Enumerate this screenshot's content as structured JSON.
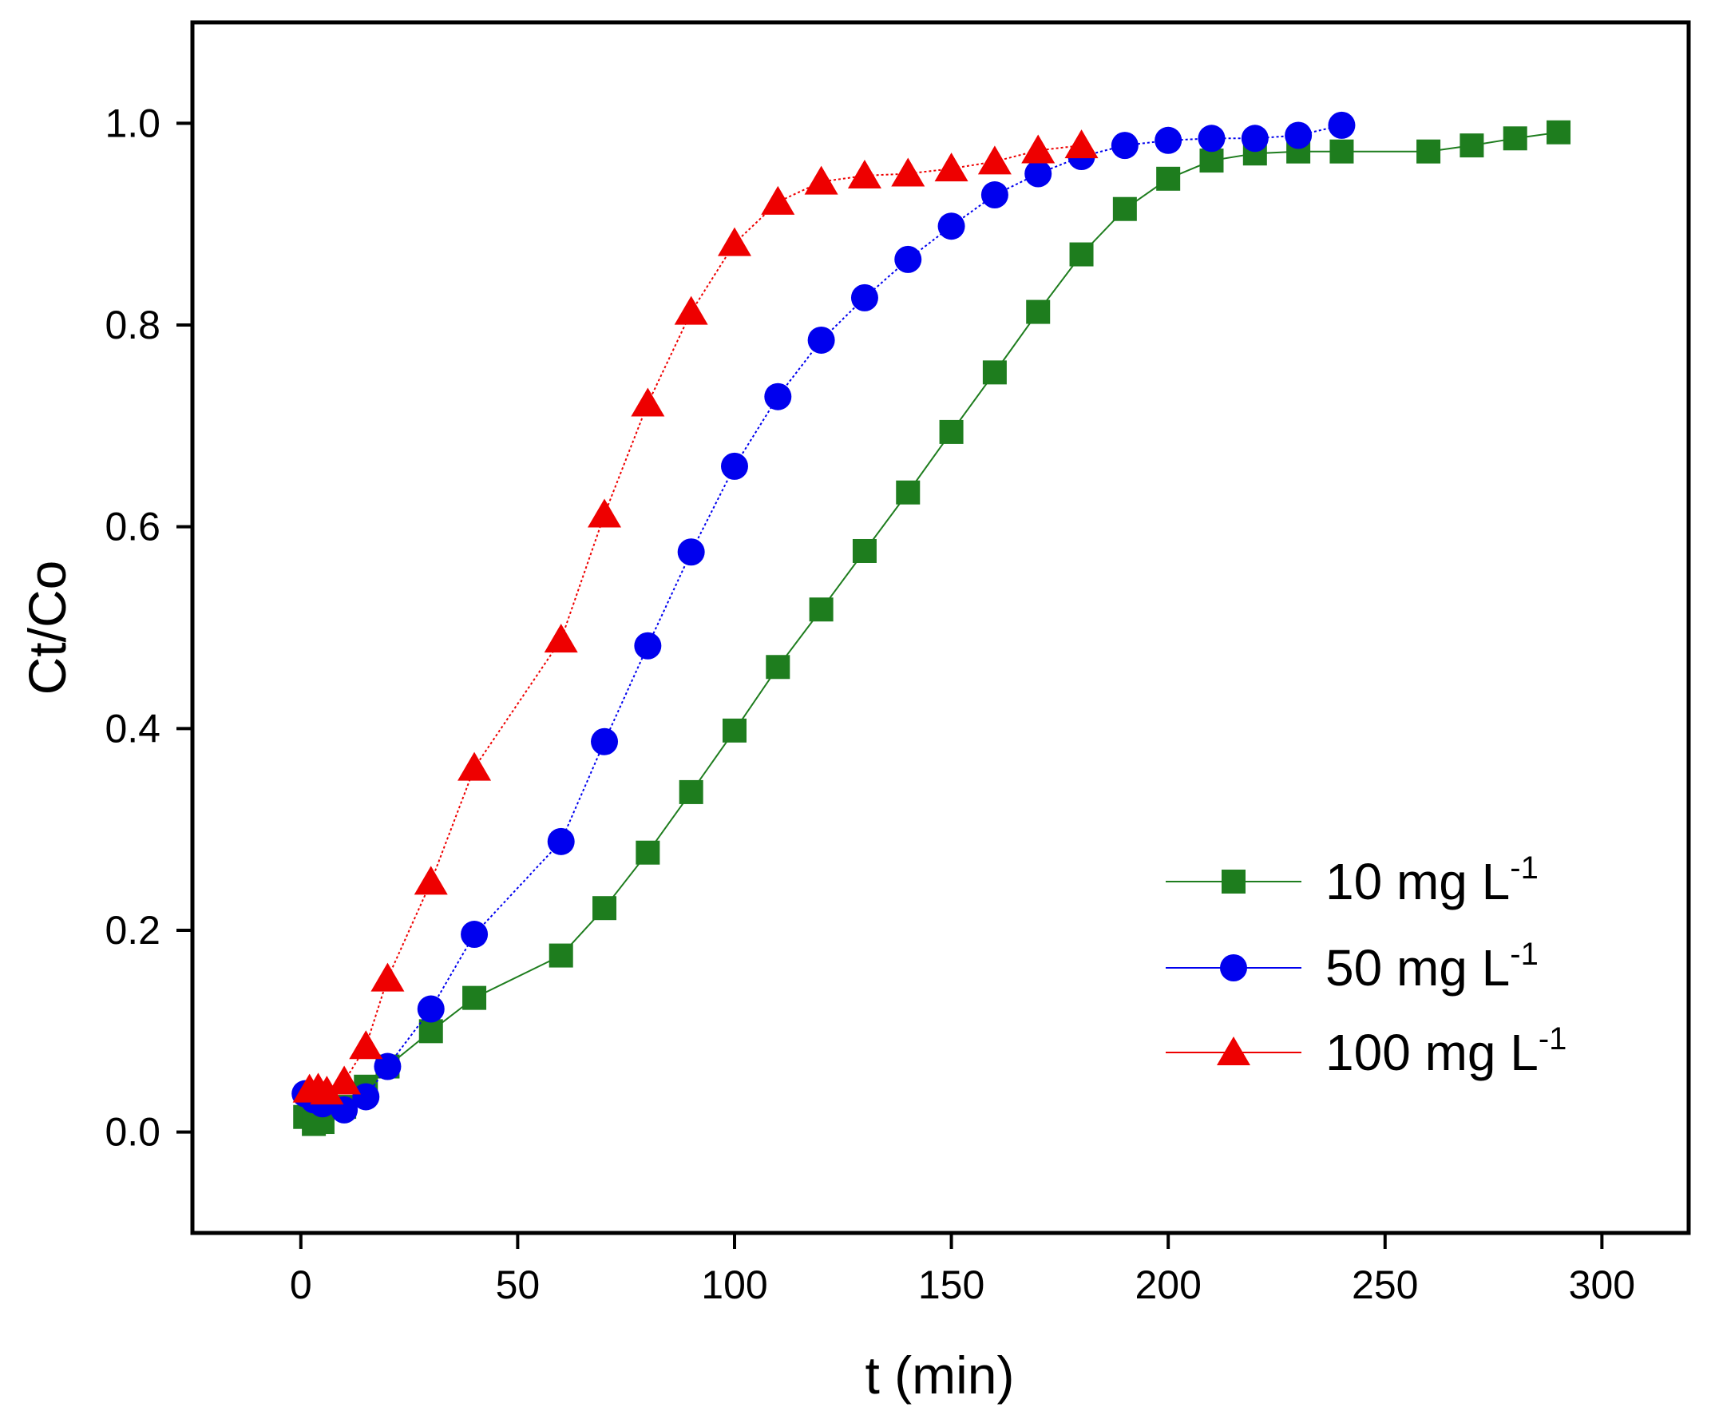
{
  "chart_data": {
    "type": "line",
    "title": "",
    "xlabel": "t (min)",
    "ylabel": "Ct/Co",
    "xlim": [
      -25,
      320
    ],
    "ylim": [
      -0.1,
      1.1
    ],
    "xticks": [
      0,
      50,
      100,
      150,
      200,
      250,
      300
    ],
    "yticks": [
      0.0,
      0.2,
      0.4,
      0.6,
      0.8,
      1.0
    ],
    "xtick_labels": [
      "0",
      "50",
      "100",
      "150",
      "200",
      "250",
      "300"
    ],
    "ytick_labels": [
      "0.0",
      "0.2",
      "0.4",
      "0.6",
      "0.8",
      "1.0"
    ],
    "grid": false,
    "legend_position": "bottom-right",
    "series": [
      {
        "name": "10 mg L-1",
        "label_main": "10 mg L",
        "label_sup": "-1",
        "color": "#1e7d1e",
        "marker": "square",
        "x": [
          1,
          3,
          5,
          10,
          15,
          20,
          30,
          40,
          60,
          70,
          80,
          90,
          100,
          110,
          120,
          130,
          140,
          150,
          160,
          170,
          180,
          190,
          200,
          210,
          220,
          230,
          240,
          260,
          270,
          280,
          290
        ],
        "y": [
          0.015,
          0.008,
          0.01,
          0.025,
          0.045,
          0.065,
          0.1,
          0.133,
          0.175,
          0.222,
          0.277,
          0.337,
          0.398,
          0.461,
          0.518,
          0.576,
          0.634,
          0.694,
          0.753,
          0.813,
          0.87,
          0.915,
          0.945,
          0.963,
          0.97,
          0.972,
          0.972,
          0.972,
          0.978,
          0.985,
          0.991
        ]
      },
      {
        "name": "50 mg L-1",
        "label_main": "50 mg L",
        "label_sup": "-1",
        "color": "#0000ee",
        "marker": "circle",
        "x": [
          1,
          3,
          5,
          10,
          15,
          20,
          30,
          40,
          60,
          70,
          80,
          90,
          100,
          110,
          120,
          130,
          140,
          150,
          160,
          170,
          180,
          190,
          200,
          210,
          220,
          230,
          240
        ],
        "y": [
          0.038,
          0.032,
          0.028,
          0.022,
          0.035,
          0.065,
          0.122,
          0.196,
          0.288,
          0.387,
          0.482,
          0.575,
          0.66,
          0.729,
          0.785,
          0.827,
          0.865,
          0.898,
          0.929,
          0.95,
          0.967,
          0.978,
          0.983,
          0.985,
          0.985,
          0.988,
          0.998
        ]
      },
      {
        "name": "100 mg L-1",
        "label_main": "100 mg L",
        "label_sup": "-1",
        "color": "#ee0000",
        "marker": "triangle",
        "x": [
          2,
          4,
          6,
          10,
          15,
          20,
          30,
          40,
          60,
          70,
          80,
          90,
          100,
          110,
          120,
          130,
          140,
          150,
          160,
          170,
          180
        ],
        "y": [
          0.042,
          0.043,
          0.04,
          0.05,
          0.085,
          0.152,
          0.248,
          0.361,
          0.488,
          0.612,
          0.722,
          0.813,
          0.881,
          0.922,
          0.942,
          0.948,
          0.95,
          0.955,
          0.962,
          0.973,
          0.978
        ]
      }
    ]
  }
}
